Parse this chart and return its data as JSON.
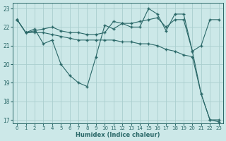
{
  "background_color": "#cce8e8",
  "grid_color": "#aacece",
  "line_color": "#2a6868",
  "x_label": "Humidex (Indice chaleur)",
  "xlim": [
    -0.5,
    23.5
  ],
  "ylim": [
    16.8,
    23.3
  ],
  "yticks": [
    17,
    18,
    19,
    20,
    21,
    22,
    23
  ],
  "xticks": [
    0,
    1,
    2,
    3,
    4,
    5,
    6,
    7,
    8,
    9,
    10,
    11,
    12,
    13,
    14,
    15,
    16,
    17,
    18,
    19,
    20,
    21,
    22,
    23
  ],
  "series1_x": [
    0,
    1,
    2,
    3,
    4,
    5,
    6,
    7,
    8,
    9,
    10,
    11,
    12,
    13,
    14,
    15,
    16,
    17,
    18,
    19,
    20,
    21,
    22,
    23
  ],
  "series1_y": [
    22.4,
    21.7,
    21.8,
    21.9,
    22.0,
    21.8,
    21.7,
    21.7,
    21.6,
    21.6,
    21.7,
    22.3,
    22.2,
    22.2,
    22.3,
    22.4,
    22.5,
    22.0,
    22.4,
    22.4,
    20.7,
    21.0,
    22.4,
    22.4
  ],
  "series2_x": [
    0,
    1,
    2,
    3,
    4,
    5,
    6,
    7,
    8,
    9,
    10,
    11,
    12,
    13,
    14,
    15,
    16,
    17,
    18,
    19,
    20,
    21,
    22,
    23
  ],
  "series2_y": [
    22.4,
    21.7,
    21.9,
    21.1,
    21.3,
    20.0,
    19.4,
    19.0,
    18.8,
    20.4,
    22.1,
    21.9,
    22.2,
    22.0,
    22.0,
    23.0,
    22.7,
    21.8,
    22.7,
    22.7,
    20.7,
    18.4,
    17.0,
    17.0
  ],
  "series3_x": [
    0,
    1,
    2,
    3,
    4,
    5,
    6,
    7,
    8,
    9,
    10,
    11,
    12,
    13,
    14,
    15,
    16,
    17,
    18,
    19,
    20,
    21,
    22,
    23
  ],
  "series3_y": [
    22.4,
    21.7,
    21.7,
    21.7,
    21.6,
    21.5,
    21.4,
    21.3,
    21.3,
    21.3,
    21.3,
    21.3,
    21.2,
    21.2,
    21.1,
    21.1,
    21.0,
    20.8,
    20.7,
    20.5,
    20.4,
    18.4,
    17.0,
    16.9
  ]
}
